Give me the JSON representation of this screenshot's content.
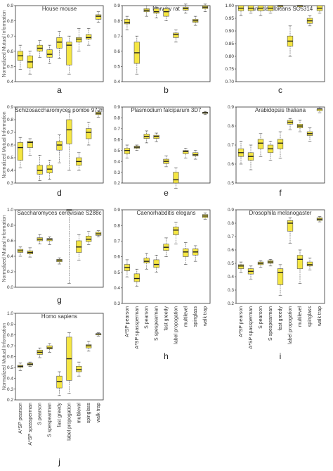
{
  "figure": {
    "ylabel": "Normalized Mutual Information",
    "methods": [
      "A*SP pearson",
      "A*SP spassperman",
      "S pearson",
      "S spespearman",
      "fast greedy",
      "label propogation",
      "multilevel",
      "spinglass",
      "walk trap"
    ],
    "colors": {
      "box_fill": "#f5e642",
      "median": "#222222",
      "axis": "#333333"
    }
  },
  "chart_data": [
    {
      "type": "box",
      "letter": "a",
      "title": "House mouse",
      "ylim": [
        0.4,
        0.9
      ],
      "yticks": [
        "0.4",
        "0.5",
        "0.6",
        "0.7",
        "0.8",
        "0.9"
      ],
      "series": [
        {
          "q1": 0.54,
          "median": 0.57,
          "q3": 0.6,
          "min": 0.48,
          "max": 0.64
        },
        {
          "q1": 0.49,
          "median": 0.53,
          "q3": 0.57,
          "min": 0.45,
          "max": 0.6
        },
        {
          "q1": 0.6,
          "median": 0.62,
          "q3": 0.64,
          "min": 0.56,
          "max": 0.67
        },
        {
          "q1": 0.56,
          "median": 0.58,
          "q3": 0.61,
          "min": 0.52,
          "max": 0.64
        },
        {
          "q1": 0.62,
          "median": 0.66,
          "q3": 0.69,
          "min": 0.55,
          "max": 0.73
        },
        {
          "q1": 0.51,
          "median": 0.64,
          "q3": 0.66,
          "min": 0.45,
          "max": 0.7
        },
        {
          "q1": 0.66,
          "median": 0.68,
          "q3": 0.69,
          "min": 0.6,
          "max": 0.75
        },
        {
          "q1": 0.68,
          "median": 0.69,
          "q3": 0.71,
          "min": 0.64,
          "max": 0.75
        },
        {
          "q1": 0.81,
          "median": 0.83,
          "q3": 0.84,
          "min": 0.79,
          "max": 0.86
        }
      ]
    },
    {
      "type": "box",
      "letter": "b",
      "title": "Norway rat",
      "ylim": [
        0.4,
        0.9
      ],
      "yticks": [
        "0.4",
        "0.5",
        "0.6",
        "0.7",
        "0.8",
        "0.9"
      ],
      "series": [
        {
          "q1": 0.78,
          "median": 0.79,
          "q3": 0.81,
          "min": 0.74,
          "max": 0.83
        },
        {
          "q1": 0.52,
          "median": 0.59,
          "q3": 0.66,
          "min": 0.45,
          "max": 0.7
        },
        {
          "q1": 0.86,
          "median": 0.87,
          "q3": 0.88,
          "min": 0.83,
          "max": 0.9
        },
        {
          "q1": 0.85,
          "median": 0.86,
          "q3": 0.88,
          "min": 0.82,
          "max": 0.89
        },
        {
          "q1": 0.83,
          "median": 0.86,
          "q3": 0.88,
          "min": 0.8,
          "max": 0.9
        },
        {
          "q1": 0.69,
          "median": 0.71,
          "q3": 0.72,
          "min": 0.66,
          "max": 0.74
        },
        {
          "q1": 0.87,
          "median": 0.88,
          "q3": 0.89,
          "min": 0.85,
          "max": 0.91
        },
        {
          "q1": 0.79,
          "median": 0.8,
          "q3": 0.81,
          "min": 0.77,
          "max": 0.83
        },
        {
          "q1": 0.88,
          "median": 0.89,
          "q3": 0.9,
          "min": 0.86,
          "max": 0.91
        }
      ]
    },
    {
      "type": "box",
      "letter": "c",
      "title": "Candida albicans SC5314",
      "ylim": [
        0.7,
        1.0
      ],
      "yticks": [
        "0.70",
        "0.75",
        "0.80",
        "0.85",
        "0.90",
        "0.95",
        "1.00"
      ],
      "series": [
        {
          "q1": 0.98,
          "median": 0.99,
          "q3": 1.0,
          "min": 0.96,
          "max": 1.0
        },
        {
          "q1": 0.98,
          "median": 0.99,
          "q3": 1.0,
          "min": 0.97,
          "max": 1.0
        },
        {
          "q1": 0.98,
          "median": 0.99,
          "q3": 1.0,
          "min": 0.96,
          "max": 1.0
        },
        {
          "q1": 0.98,
          "median": 0.99,
          "q3": 1.0,
          "min": 0.97,
          "max": 1.0
        },
        {
          "q1": 0.995,
          "median": 1.0,
          "q3": 1.0,
          "min": 0.99,
          "max": 1.0
        },
        {
          "q1": 0.84,
          "median": 0.86,
          "q3": 0.88,
          "min": 0.8,
          "max": 0.92
        },
        {
          "q1": 0.995,
          "median": 1.0,
          "q3": 1.0,
          "min": 0.99,
          "max": 1.0
        },
        {
          "q1": 0.93,
          "median": 0.94,
          "q3": 0.95,
          "min": 0.92,
          "max": 0.96
        },
        {
          "q1": 0.98,
          "median": 0.99,
          "q3": 1.0,
          "min": 0.97,
          "max": 1.0
        }
      ]
    },
    {
      "type": "box",
      "letter": "d",
      "title": "Schizosaccharomyces pombe 972h",
      "ylim": [
        0.3,
        0.9
      ],
      "yticks": [
        "0.3",
        "0.4",
        "0.5",
        "0.6",
        "0.7",
        "0.8",
        "0.9"
      ],
      "series": [
        {
          "q1": 0.48,
          "median": 0.58,
          "q3": 0.62,
          "min": 0.42,
          "max": 0.66
        },
        {
          "q1": 0.58,
          "median": 0.62,
          "q3": 0.63,
          "min": 0.52,
          "max": 0.65
        },
        {
          "q1": 0.37,
          "median": 0.4,
          "q3": 0.44,
          "min": 0.32,
          "max": 0.52
        },
        {
          "q1": 0.38,
          "median": 0.41,
          "q3": 0.44,
          "min": 0.33,
          "max": 0.48
        },
        {
          "q1": 0.56,
          "median": 0.6,
          "q3": 0.63,
          "min": 0.46,
          "max": 0.68
        },
        {
          "q1": 0.61,
          "median": 0.72,
          "q3": 0.8,
          "min": 0.4,
          "max": 0.86
        },
        {
          "q1": 0.44,
          "median": 0.47,
          "q3": 0.5,
          "min": 0.4,
          "max": 0.54
        },
        {
          "q1": 0.65,
          "median": 0.7,
          "q3": 0.73,
          "min": 0.6,
          "max": 0.78
        },
        {
          "q1": 0.84,
          "median": 0.85,
          "q3": 0.86,
          "min": 0.82,
          "max": 0.87
        }
      ]
    },
    {
      "type": "box",
      "letter": "e",
      "title": "Plasmodium falciparum 3D7",
      "ylim": [
        0.2,
        0.9
      ],
      "yticks": [
        "0.2",
        "0.3",
        "0.4",
        "0.5",
        "0.6",
        "0.7",
        "0.8",
        "0.9"
      ],
      "series": [
        {
          "q1": 0.47,
          "median": 0.5,
          "q3": 0.52,
          "min": 0.43,
          "max": 0.55
        },
        {
          "q1": 0.52,
          "median": 0.53,
          "q3": 0.54,
          "min": 0.5,
          "max": 0.55
        },
        {
          "q1": 0.61,
          "median": 0.63,
          "q3": 0.65,
          "min": 0.57,
          "max": 0.68
        },
        {
          "q1": 0.61,
          "median": 0.63,
          "q3": 0.64,
          "min": 0.58,
          "max": 0.66
        },
        {
          "q1": 0.38,
          "median": 0.4,
          "q3": 0.42,
          "min": 0.35,
          "max": 0.45
        },
        {
          "q1": 0.2,
          "median": 0.23,
          "q3": 0.3,
          "min": 0.15,
          "max": 0.34
        },
        {
          "q1": 0.47,
          "median": 0.49,
          "q3": 0.5,
          "min": 0.43,
          "max": 0.52
        },
        {
          "q1": 0.45,
          "median": 0.46,
          "q3": 0.48,
          "min": 0.42,
          "max": 0.5
        },
        {
          "q1": 0.84,
          "median": 0.85,
          "q3": 0.85,
          "min": 0.83,
          "max": 0.86
        }
      ]
    },
    {
      "type": "box",
      "letter": "f",
      "title": "Arabidopsis thaliana",
      "ylim": [
        0.5,
        0.9
      ],
      "yticks": [
        "0.5",
        "0.6",
        "0.7",
        "0.8",
        "0.9"
      ],
      "series": [
        {
          "q1": 0.64,
          "median": 0.66,
          "q3": 0.68,
          "min": 0.6,
          "max": 0.72
        },
        {
          "q1": 0.62,
          "median": 0.64,
          "q3": 0.66,
          "min": 0.57,
          "max": 0.7
        },
        {
          "q1": 0.68,
          "median": 0.71,
          "q3": 0.73,
          "min": 0.64,
          "max": 0.76
        },
        {
          "q1": 0.66,
          "median": 0.68,
          "q3": 0.7,
          "min": 0.62,
          "max": 0.72
        },
        {
          "q1": 0.68,
          "median": 0.71,
          "q3": 0.73,
          "min": 0.63,
          "max": 0.77
        },
        {
          "q1": 0.81,
          "median": 0.82,
          "q3": 0.83,
          "min": 0.78,
          "max": 0.84
        },
        {
          "q1": 0.79,
          "median": 0.8,
          "q3": 0.81,
          "min": 0.77,
          "max": 0.83
        },
        {
          "q1": 0.75,
          "median": 0.76,
          "q3": 0.77,
          "min": 0.72,
          "max": 0.79
        },
        {
          "q1": 0.88,
          "median": 0.89,
          "q3": 0.89,
          "min": 0.87,
          "max": 0.9
        }
      ]
    },
    {
      "type": "box",
      "letter": "g",
      "title": "Saccharomyces cerevisiae S288c",
      "ylim": [
        0.0,
        1.0
      ],
      "yticks": [
        "0.0",
        "0.2",
        "0.4",
        "0.6",
        "0.8",
        "1.0"
      ],
      "series": [
        {
          "q1": 0.45,
          "median": 0.47,
          "q3": 0.49,
          "min": 0.4,
          "max": 0.52
        },
        {
          "q1": 0.43,
          "median": 0.45,
          "q3": 0.47,
          "min": 0.39,
          "max": 0.51
        },
        {
          "q1": 0.6,
          "median": 0.62,
          "q3": 0.64,
          "min": 0.56,
          "max": 0.68
        },
        {
          "q1": 0.6,
          "median": 0.62,
          "q3": 0.63,
          "min": 0.55,
          "max": 0.65
        },
        {
          "q1": 0.33,
          "median": 0.35,
          "q3": 0.36,
          "min": 0.3,
          "max": 0.38
        },
        {
          "q1": 1.0,
          "median": 1.0,
          "q3": 1.0,
          "min": 0.05,
          "max": 1.0
        },
        {
          "q1": 0.45,
          "median": 0.52,
          "q3": 0.6,
          "min": 0.35,
          "max": 0.68
        },
        {
          "q1": 0.59,
          "median": 0.62,
          "q3": 0.66,
          "min": 0.55,
          "max": 0.72
        },
        {
          "q1": 0.67,
          "median": 0.69,
          "q3": 0.71,
          "min": 0.65,
          "max": 0.73
        }
      ]
    },
    {
      "type": "box",
      "letter": "h",
      "title": "Caenorhabditis elegans",
      "ylim": [
        0.3,
        0.9
      ],
      "yticks": [
        "0.3",
        "0.4",
        "0.5",
        "0.6",
        "0.7",
        "0.8",
        "0.9"
      ],
      "series": [
        {
          "q1": 0.51,
          "median": 0.53,
          "q3": 0.55,
          "min": 0.47,
          "max": 0.58
        },
        {
          "q1": 0.44,
          "median": 0.46,
          "q3": 0.49,
          "min": 0.41,
          "max": 0.52
        },
        {
          "q1": 0.56,
          "median": 0.57,
          "q3": 0.59,
          "min": 0.52,
          "max": 0.62
        },
        {
          "q1": 0.53,
          "median": 0.55,
          "q3": 0.58,
          "min": 0.5,
          "max": 0.61
        },
        {
          "q1": 0.64,
          "median": 0.66,
          "q3": 0.68,
          "min": 0.6,
          "max": 0.72
        },
        {
          "q1": 0.74,
          "median": 0.77,
          "q3": 0.79,
          "min": 0.68,
          "max": 0.82
        },
        {
          "q1": 0.6,
          "median": 0.63,
          "q3": 0.65,
          "min": 0.55,
          "max": 0.69
        },
        {
          "q1": 0.61,
          "median": 0.63,
          "q3": 0.65,
          "min": 0.57,
          "max": 0.67
        },
        {
          "q1": 0.85,
          "median": 0.86,
          "q3": 0.87,
          "min": 0.84,
          "max": 0.88
        }
      ]
    },
    {
      "type": "box",
      "letter": "i",
      "title": "Drosophila melanogaster",
      "ylim": [
        0.2,
        0.9
      ],
      "yticks": [
        "0.2",
        "0.3",
        "0.4",
        "0.5",
        "0.6",
        "0.7",
        "0.8",
        "0.9"
      ],
      "series": [
        {
          "q1": 0.46,
          "median": 0.48,
          "q3": 0.49,
          "min": 0.43,
          "max": 0.51
        },
        {
          "q1": 0.42,
          "median": 0.44,
          "q3": 0.46,
          "min": 0.38,
          "max": 0.48
        },
        {
          "q1": 0.49,
          "median": 0.5,
          "q3": 0.51,
          "min": 0.47,
          "max": 0.52
        },
        {
          "q1": 0.5,
          "median": 0.51,
          "q3": 0.52,
          "min": 0.48,
          "max": 0.53
        },
        {
          "q1": 0.34,
          "median": 0.43,
          "q3": 0.46,
          "min": 0.26,
          "max": 0.49
        },
        {
          "q1": 0.74,
          "median": 0.8,
          "q3": 0.82,
          "min": 0.65,
          "max": 0.84
        },
        {
          "q1": 0.46,
          "median": 0.53,
          "q3": 0.56,
          "min": 0.35,
          "max": 0.6
        },
        {
          "q1": 0.48,
          "median": 0.49,
          "q3": 0.51,
          "min": 0.45,
          "max": 0.54
        },
        {
          "q1": 0.82,
          "median": 0.83,
          "q3": 0.84,
          "min": 0.81,
          "max": 0.85
        }
      ]
    },
    {
      "type": "box",
      "letter": "j",
      "title": "Homo sapiens",
      "ylim": [
        0.2,
        1.0
      ],
      "yticks": [
        "0.2",
        "0.3",
        "0.4",
        "0.5",
        "0.6",
        "0.7",
        "0.8",
        "0.9",
        "1.0"
      ],
      "series": [
        {
          "q1": 0.5,
          "median": 0.51,
          "q3": 0.52,
          "min": 0.47,
          "max": 0.54
        },
        {
          "q1": 0.52,
          "median": 0.53,
          "q3": 0.54,
          "min": 0.51,
          "max": 0.55
        },
        {
          "q1": 0.62,
          "median": 0.64,
          "q3": 0.66,
          "min": 0.59,
          "max": 0.68
        },
        {
          "q1": 0.67,
          "median": 0.68,
          "q3": 0.7,
          "min": 0.64,
          "max": 0.72
        },
        {
          "q1": 0.31,
          "median": 0.37,
          "q3": 0.42,
          "min": 0.24,
          "max": 0.46
        },
        {
          "q1": 0.38,
          "median": 0.58,
          "q3": 0.78,
          "min": 0.26,
          "max": 0.82
        },
        {
          "q1": 0.46,
          "median": 0.48,
          "q3": 0.51,
          "min": 0.42,
          "max": 0.55
        },
        {
          "q1": 0.68,
          "median": 0.7,
          "q3": 0.71,
          "min": 0.65,
          "max": 0.74
        },
        {
          "q1": 0.8,
          "median": 0.81,
          "q3": 0.81,
          "min": 0.79,
          "max": 0.82
        }
      ]
    }
  ]
}
